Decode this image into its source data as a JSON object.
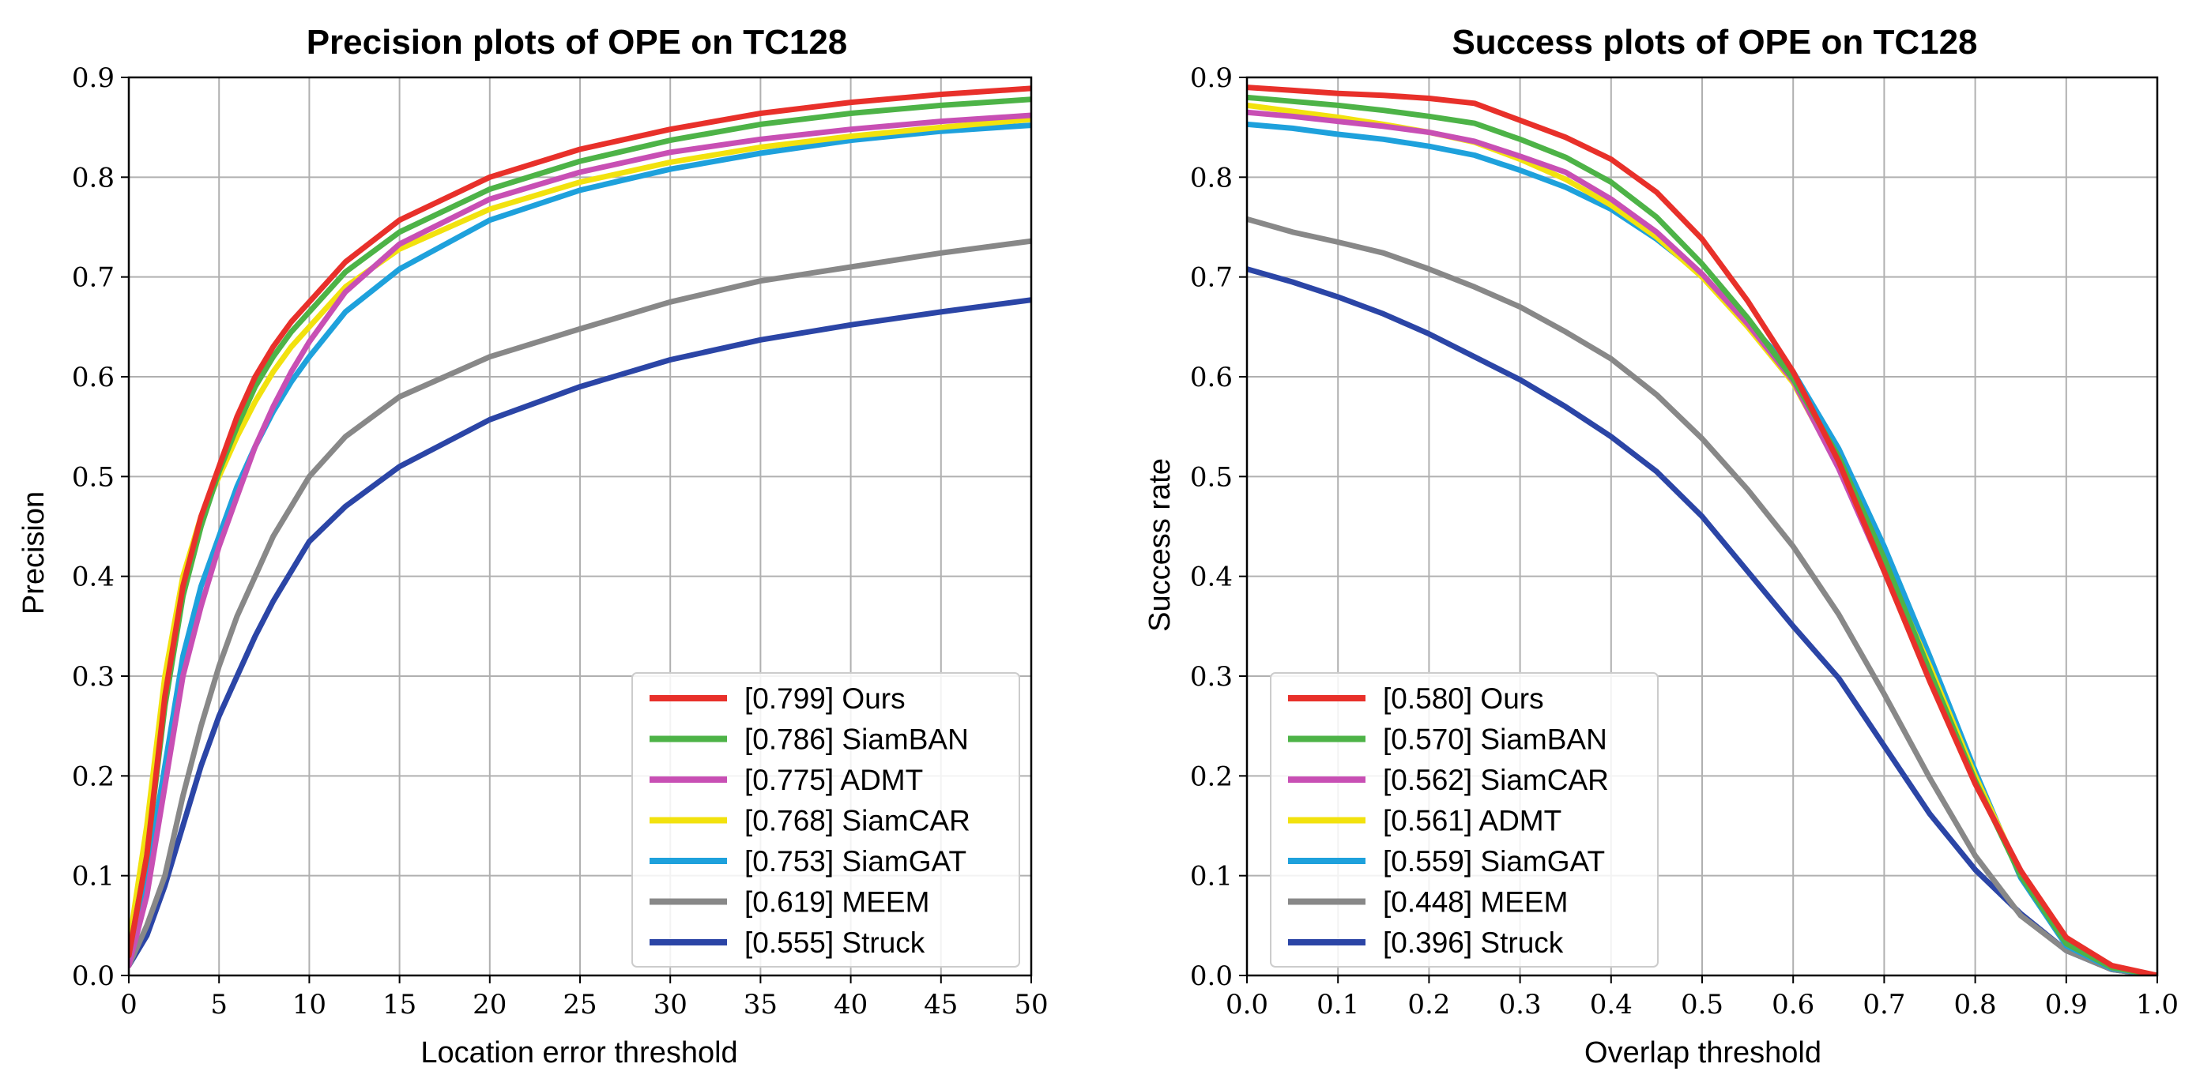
{
  "chart_data": [
    {
      "type": "line",
      "title": "Precision plots of OPE on TC128",
      "xlabel": "Location error threshold",
      "ylabel": "Precision",
      "xlim": [
        0,
        50
      ],
      "ylim": [
        0,
        0.9
      ],
      "xticks": [
        0,
        5,
        10,
        15,
        20,
        25,
        30,
        35,
        40,
        45,
        50
      ],
      "xtick_labels": [
        "0",
        "5",
        "10",
        "15",
        "20",
        "25",
        "30",
        "35",
        "40",
        "45",
        "50"
      ],
      "yticks": [
        0,
        0.1,
        0.2,
        0.3,
        0.4,
        0.5,
        0.6,
        0.7,
        0.8,
        0.9
      ],
      "ytick_labels": [
        "0.0",
        "0.1",
        "0.2",
        "0.3",
        "0.4",
        "0.5",
        "0.6",
        "0.7",
        "0.8",
        "0.9"
      ],
      "grid": true,
      "legend_position": "lower-right",
      "x": [
        0,
        1,
        2,
        3,
        4,
        5,
        6,
        7,
        8,
        9,
        10,
        12,
        15,
        20,
        25,
        30,
        35,
        40,
        45,
        50
      ],
      "series": [
        {
          "name": "Ours",
          "legend": "[0.799] Ours",
          "color": "#e8302a",
          "values": [
            0.02,
            0.12,
            0.28,
            0.39,
            0.46,
            0.51,
            0.56,
            0.6,
            0.63,
            0.655,
            0.675,
            0.715,
            0.757,
            0.8,
            0.828,
            0.848,
            0.864,
            0.875,
            0.883,
            0.889
          ]
        },
        {
          "name": "SiamBAN",
          "legend": "[0.786] SiamBAN",
          "color": "#4db347",
          "values": [
            0.02,
            0.12,
            0.27,
            0.38,
            0.45,
            0.505,
            0.55,
            0.59,
            0.62,
            0.645,
            0.665,
            0.705,
            0.745,
            0.788,
            0.816,
            0.837,
            0.853,
            0.864,
            0.872,
            0.878
          ]
        },
        {
          "name": "ADMT",
          "legend": "[0.775] ADMT",
          "color": "#c84fb4",
          "values": [
            0.01,
            0.08,
            0.19,
            0.3,
            0.37,
            0.43,
            0.48,
            0.53,
            0.57,
            0.605,
            0.635,
            0.685,
            0.733,
            0.778,
            0.805,
            0.825,
            0.838,
            0.848,
            0.856,
            0.862
          ]
        },
        {
          "name": "SiamCAR",
          "legend": "[0.768] SiamCAR",
          "color": "#f2e20e",
          "values": [
            0.03,
            0.15,
            0.3,
            0.4,
            0.46,
            0.5,
            0.54,
            0.575,
            0.605,
            0.63,
            0.65,
            0.69,
            0.728,
            0.768,
            0.795,
            0.815,
            0.83,
            0.841,
            0.85,
            0.858
          ]
        },
        {
          "name": "SiamGAT",
          "legend": "[0.753] SiamGAT",
          "color": "#1ea1dc",
          "values": [
            0.02,
            0.1,
            0.21,
            0.32,
            0.39,
            0.44,
            0.49,
            0.53,
            0.565,
            0.595,
            0.62,
            0.665,
            0.708,
            0.757,
            0.787,
            0.808,
            0.824,
            0.837,
            0.846,
            0.852
          ]
        },
        {
          "name": "MEEM",
          "legend": "[0.619] MEEM",
          "color": "#888888",
          "values": [
            0.01,
            0.05,
            0.1,
            0.18,
            0.25,
            0.31,
            0.36,
            0.4,
            0.44,
            0.47,
            0.5,
            0.54,
            0.58,
            0.62,
            0.648,
            0.675,
            0.696,
            0.71,
            0.724,
            0.736
          ]
        },
        {
          "name": "Struck",
          "legend": "[0.555] Struck",
          "color": "#2b45a6",
          "values": [
            0.01,
            0.04,
            0.09,
            0.15,
            0.21,
            0.26,
            0.3,
            0.34,
            0.375,
            0.405,
            0.435,
            0.47,
            0.51,
            0.557,
            0.59,
            0.617,
            0.637,
            0.652,
            0.665,
            0.677
          ]
        }
      ]
    },
    {
      "type": "line",
      "title": "Success plots of OPE on TC128",
      "xlabel": "Overlap threshold",
      "ylabel": "Success rate",
      "xlim": [
        0,
        1.0
      ],
      "ylim": [
        0,
        0.9
      ],
      "xticks": [
        0,
        0.1,
        0.2,
        0.3,
        0.4,
        0.5,
        0.6,
        0.7,
        0.8,
        0.9,
        1.0
      ],
      "xtick_labels": [
        "0.0",
        "0.1",
        "0.2",
        "0.3",
        "0.4",
        "0.5",
        "0.6",
        "0.7",
        "0.8",
        "0.9",
        "1.0"
      ],
      "yticks": [
        0,
        0.1,
        0.2,
        0.3,
        0.4,
        0.5,
        0.6,
        0.7,
        0.8,
        0.9
      ],
      "ytick_labels": [
        "0.0",
        "0.1",
        "0.2",
        "0.3",
        "0.4",
        "0.5",
        "0.6",
        "0.7",
        "0.8",
        "0.9"
      ],
      "grid": true,
      "legend_position": "lower-left",
      "x": [
        0,
        0.05,
        0.1,
        0.15,
        0.2,
        0.25,
        0.3,
        0.35,
        0.4,
        0.45,
        0.5,
        0.55,
        0.6,
        0.65,
        0.7,
        0.75,
        0.8,
        0.85,
        0.9,
        0.95,
        1.0
      ],
      "series": [
        {
          "name": "Ours",
          "legend": "[0.580] Ours",
          "color": "#e8302a",
          "values": [
            0.89,
            0.887,
            0.884,
            0.882,
            0.879,
            0.874,
            0.857,
            0.84,
            0.818,
            0.785,
            0.738,
            0.676,
            0.605,
            0.515,
            0.405,
            0.295,
            0.192,
            0.105,
            0.038,
            0.01,
            0.0
          ]
        },
        {
          "name": "SiamBAN",
          "legend": "[0.570] SiamBAN",
          "color": "#4db347",
          "values": [
            0.88,
            0.876,
            0.872,
            0.867,
            0.861,
            0.854,
            0.838,
            0.82,
            0.795,
            0.76,
            0.713,
            0.659,
            0.598,
            0.52,
            0.418,
            0.305,
            0.195,
            0.1,
            0.032,
            0.008,
            0.0
          ]
        },
        {
          "name": "SiamCAR",
          "legend": "[0.562] SiamCAR",
          "color": "#c84fb4",
          "values": [
            0.865,
            0.861,
            0.856,
            0.851,
            0.845,
            0.836,
            0.821,
            0.805,
            0.778,
            0.745,
            0.703,
            0.653,
            0.596,
            0.508,
            0.405,
            0.3,
            0.193,
            0.105,
            0.035,
            0.008,
            0.0
          ]
        },
        {
          "name": "ADMT",
          "legend": "[0.561] ADMT",
          "color": "#f2e20e",
          "values": [
            0.872,
            0.866,
            0.86,
            0.853,
            0.845,
            0.835,
            0.818,
            0.798,
            0.772,
            0.74,
            0.7,
            0.65,
            0.594,
            0.51,
            0.412,
            0.31,
            0.2,
            0.102,
            0.033,
            0.008,
            0.0
          ]
        },
        {
          "name": "SiamGAT",
          "legend": "[0.559] SiamGAT",
          "color": "#1ea1dc",
          "values": [
            0.853,
            0.849,
            0.843,
            0.838,
            0.831,
            0.822,
            0.807,
            0.79,
            0.768,
            0.738,
            0.702,
            0.655,
            0.605,
            0.528,
            0.43,
            0.32,
            0.205,
            0.098,
            0.03,
            0.007,
            0.0
          ]
        },
        {
          "name": "MEEM",
          "legend": "[0.448] MEEM",
          "color": "#888888",
          "values": [
            0.758,
            0.745,
            0.735,
            0.724,
            0.708,
            0.69,
            0.67,
            0.645,
            0.618,
            0.582,
            0.538,
            0.487,
            0.43,
            0.362,
            0.282,
            0.198,
            0.12,
            0.06,
            0.025,
            0.006,
            0.0
          ]
        },
        {
          "name": "Struck",
          "legend": "[0.396] Struck",
          "color": "#2b45a6",
          "values": [
            0.708,
            0.695,
            0.68,
            0.663,
            0.643,
            0.62,
            0.597,
            0.57,
            0.54,
            0.505,
            0.46,
            0.405,
            0.35,
            0.298,
            0.23,
            0.162,
            0.106,
            0.062,
            0.025,
            0.006,
            0.0
          ]
        }
      ]
    }
  ]
}
